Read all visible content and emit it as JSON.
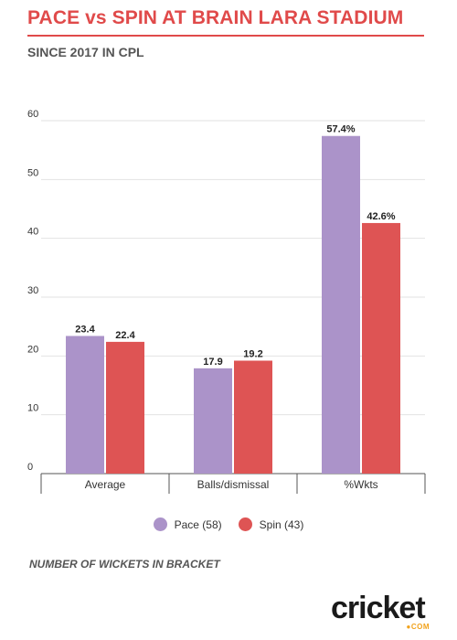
{
  "header": {
    "title": "PACE vs SPIN AT BRAIN LARA STADIUM",
    "subtitle": "SINCE 2017 IN CPL"
  },
  "footnote": "NUMBER OF WICKETS IN BRACKET",
  "logo": {
    "word": "cricket",
    "suffix": "●COM"
  },
  "colors": {
    "pace": "#ab93c9",
    "spin": "#de5454",
    "accent": "#e04a4a"
  },
  "chart_data": {
    "type": "bar",
    "title": "",
    "xlabel": "",
    "ylabel": "",
    "categories": [
      "Average",
      "Balls/dismissal",
      "%Wkts"
    ],
    "series": [
      {
        "name": "Pace (58)",
        "values": [
          23.4,
          17.9,
          57.4
        ],
        "labels": [
          "23.4",
          "17.9",
          "57.4%"
        ],
        "color": "#ab93c9"
      },
      {
        "name": "Spin (43)",
        "values": [
          22.4,
          19.2,
          42.6
        ],
        "labels": [
          "22.4",
          "19.2",
          "42.6%"
        ],
        "color": "#de5454"
      }
    ],
    "ylim": [
      0,
      60
    ],
    "yticks": [
      "0",
      "10",
      "20",
      "30",
      "40",
      "50",
      "60"
    ],
    "grid": true,
    "legend": "bottom-center"
  }
}
